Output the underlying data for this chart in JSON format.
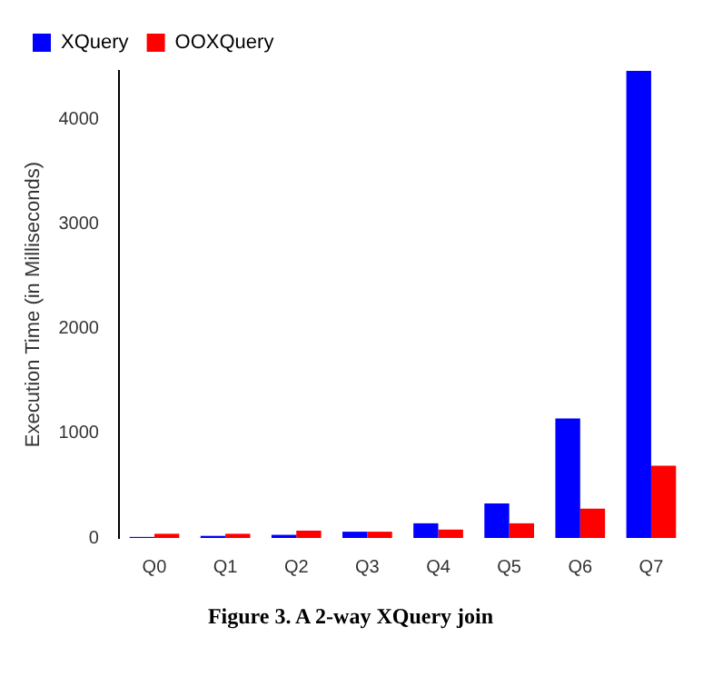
{
  "chart_data": {
    "type": "bar",
    "ylabel": "Execution Time (in Milliseconds)",
    "annotations": [
      "Figure 3. A 2-way XQuery join"
    ],
    "categories": [
      "Q0",
      "Q1",
      "Q2",
      "Q3",
      "Q4",
      "Q5",
      "Q6",
      "Q7"
    ],
    "series": [
      {
        "name": "XQuery",
        "color": "#0000ff",
        "values": [
          10,
          20,
          30,
          60,
          140,
          330,
          1140,
          4460
        ]
      },
      {
        "name": "OOXQuery",
        "color": "#ff0000",
        "values": [
          40,
          40,
          70,
          60,
          80,
          140,
          280,
          690
        ]
      }
    ],
    "ylim": [
      0,
      4460
    ],
    "yticks": [
      0,
      1000,
      2000,
      3000,
      4000
    ],
    "grid": false,
    "legend": "top left"
  }
}
